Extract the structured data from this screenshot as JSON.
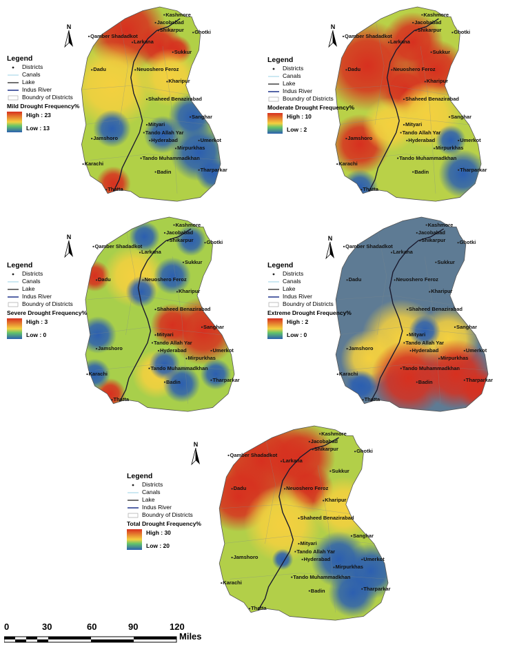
{
  "maps": [
    {
      "id": "mild",
      "ramp_title": "Mild Drought Frequency%",
      "high": "High : 23",
      "low": "Low : 13",
      "colors": {
        "high": "#d7301f",
        "mid": "#f4d03f",
        "low": "#2c5fb0"
      }
    },
    {
      "id": "moderate",
      "ramp_title": "Moderate Drought Frequency%",
      "high": "High : 10",
      "low": "Low : 2",
      "colors": {
        "high": "#d7301f",
        "mid": "#f4d03f",
        "low": "#2c5fb0"
      }
    },
    {
      "id": "severe",
      "ramp_title": "Severe Drought Frequency%",
      "high": "High : 3",
      "low": "Low : 0",
      "colors": {
        "high": "#d7301f",
        "mid": "#f4d03f",
        "low": "#2c5fb0"
      }
    },
    {
      "id": "extreme",
      "ramp_title": "Extreme Drought Frequency%",
      "high": "High : 2",
      "low": "Low : 0",
      "colors": {
        "high": "#d7301f",
        "mid": "#f4d03f",
        "low": "#2c5fb0"
      }
    },
    {
      "id": "total",
      "ramp_title": "Total Drought Frequency%",
      "high": "High : 30",
      "low": "Low : 20",
      "colors": {
        "high": "#d7301f",
        "mid": "#f4d03f",
        "low": "#2c5fb0"
      }
    }
  ],
  "legend": {
    "title": "Legend",
    "items": [
      "Districts",
      "Canals",
      "Lake",
      "Indus River",
      "Boundry of Districts"
    ]
  },
  "north_label": "N",
  "places": {
    "kashmore": "Kashmore",
    "jacobabad": "Jacobabad",
    "shikarpur": "Shikarpur",
    "qamber": "Qamber Shadadkot",
    "larkana": "Larkana",
    "ghotki": "Ghotki",
    "sukkur": "Sukkur",
    "dadu": "Dadu",
    "naushero": "Neuoshero Feroz",
    "khairpur": "Kharipur",
    "benazirabad": "Shaheed Benazirabad",
    "sanghar": "Sanghar",
    "matiari": "Mityari",
    "tando_allahyar": "Tando Allah Yar",
    "hyderabad": "Hyderabad",
    "jamshoro": "Jamshoro",
    "umerkot": "Umerkot",
    "mirpurkhas": "Mirpurkhas",
    "tando_muhammad_khan": "Tando Muhammadkhan",
    "karachi": "Karachi",
    "badin": "Badin",
    "tharparkar": "Tharparkar",
    "thatta": "Thatta"
  },
  "scalebar": {
    "ticks": [
      "0",
      "30",
      "60",
      "90",
      "120"
    ],
    "unit": "Miles"
  }
}
